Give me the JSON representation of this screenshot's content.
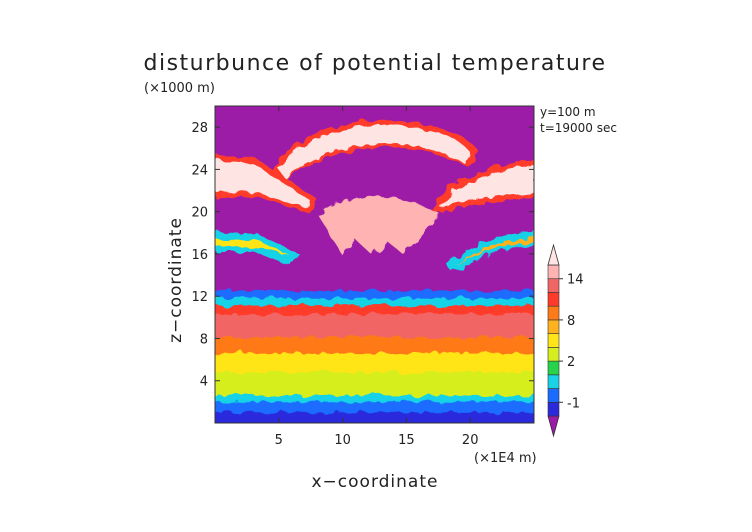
{
  "chart_data": {
    "type": "heatmap",
    "title": "disturbunce of potential temperature",
    "xlabel": "x−coordinate",
    "ylabel": "z−coordinate",
    "x_unit": "(×1E4 m)",
    "y_unit": "(×1000 m)",
    "annotations": [
      "y=100  m",
      "t=19000 sec"
    ],
    "xlim": [
      0,
      25
    ],
    "ylim": [
      0,
      30
    ],
    "x_ticks": [
      5,
      10,
      15,
      20
    ],
    "y_ticks": [
      4,
      8,
      12,
      16,
      20,
      24,
      28
    ],
    "colorbar": {
      "levels": [
        -3,
        -2,
        -1,
        0,
        1,
        2,
        4,
        6,
        8,
        10,
        12,
        14,
        16
      ],
      "labels": [
        "-1",
        "2",
        "8",
        "14"
      ],
      "label_values": [
        -1,
        2,
        8,
        14
      ],
      "colors": [
        "#9c1aa8",
        "#2a2adc",
        "#1a6cff",
        "#19d2e6",
        "#27d34a",
        "#d6ee1e",
        "#ffe418",
        "#ffb21e",
        "#ff7a18",
        "#ff3a2a",
        "#f26565",
        "#ffb3b3",
        "#ffe4e4"
      ]
    },
    "bands": [
      {
        "z_range": [
          0,
          1.2
        ],
        "value": -2
      },
      {
        "z_range": [
          1.2,
          2.2
        ],
        "value": -1
      },
      {
        "z_range": [
          2.2,
          2.8
        ],
        "value": 0.5
      },
      {
        "z_range": [
          2.8,
          3.5
        ],
        "value": 2
      },
      {
        "z_range": [
          3.5,
          5.0
        ],
        "value": 3
      },
      {
        "z_range": [
          5.0,
          6.8
        ],
        "value": 5
      },
      {
        "z_range": [
          6.8,
          8.3
        ],
        "value": 9
      },
      {
        "z_range": [
          8.3,
          10.5
        ],
        "value": 13
      },
      {
        "z_range": [
          10.5,
          11.3
        ],
        "value": 11
      },
      {
        "z_range": [
          11.3,
          12.0
        ],
        "value": 0
      },
      {
        "z_range": [
          12.0,
          12.7
        ],
        "value": -1
      },
      {
        "z_range": [
          12.7,
          30
        ],
        "value": -3
      }
    ],
    "upper_structures": [
      {
        "name": "arc",
        "value": 15
      },
      {
        "name": "left-wing",
        "value": 15
      },
      {
        "name": "right-wing",
        "value": 15
      }
    ]
  }
}
